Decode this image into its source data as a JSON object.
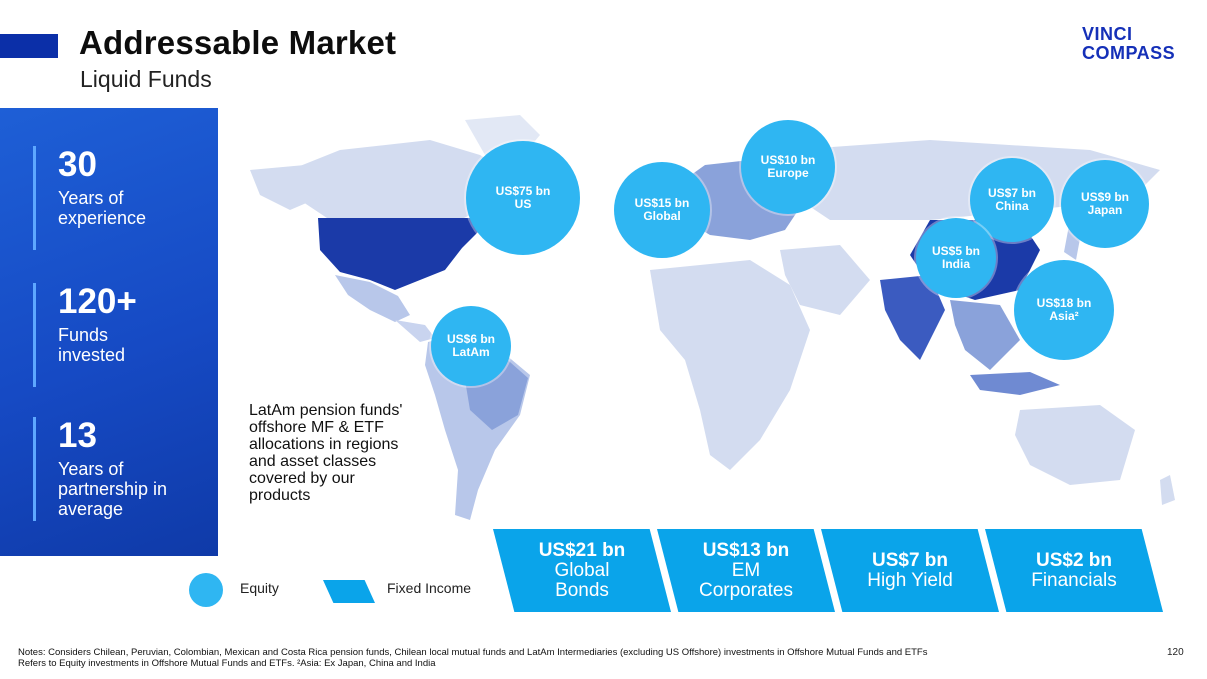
{
  "header": {
    "title": "Addressable Market",
    "subtitle": "Liquid Funds"
  },
  "logo": {
    "line1": "VINCI",
    "line2": "COMPASS"
  },
  "stats": [
    {
      "value": "30",
      "label": "Years of experience"
    },
    {
      "value": "120+",
      "label": "Funds invested"
    },
    {
      "value": "13",
      "label": "Years of partnership in average"
    }
  ],
  "equity_bubbles": [
    {
      "amount": "US$75 bn",
      "region": "US"
    },
    {
      "amount": "US$15 bn",
      "region": "Global"
    },
    {
      "amount": "US$10 bn",
      "region": "Europe"
    },
    {
      "amount": "US$7 bn",
      "region": "China"
    },
    {
      "amount": "US$9 bn",
      "region": "Japan"
    },
    {
      "amount": "US$5 bn",
      "region": "India"
    },
    {
      "amount": "US$18 bn",
      "region": "Asia²"
    },
    {
      "amount": "US$6 bn",
      "region": "LatAm"
    }
  ],
  "description": "LatAm pension funds' offshore MF & ETF allocations in regions and asset classes covered by our products",
  "fixed_income": [
    {
      "amount": "US$21 bn",
      "category": "Global Bonds"
    },
    {
      "amount": "US$13 bn",
      "category": "EM Corporates"
    },
    {
      "amount": "US$7 bn",
      "category": "High Yield"
    },
    {
      "amount": "US$2 bn",
      "category": "Financials"
    }
  ],
  "legend": {
    "equity": "Equity",
    "fixed_income": "Fixed Income"
  },
  "footnote": {
    "line1": "Notes: Considers Chilean, Peruvian, Colombian, Mexican and Costa Rica pension funds, Chilean local mutual funds and LatAm Intermediaries (excluding US Offshore) investments in Offshore Mutual Funds and ETFs",
    "line2": "Refers to Equity investments in Offshore Mutual Funds and ETFs. ²Asia: Ex Japan, China and India"
  },
  "page_number": "120",
  "colors": {
    "brand_blue": "#1530b8",
    "panel_blue": "#164ac4",
    "equity_cyan": "#2fb6f2",
    "fixed_income_blue": "#0aa4ea",
    "map_light": "#d3dcf0",
    "map_mid": "#8aa2da",
    "map_dark": "#1b3aa8"
  }
}
